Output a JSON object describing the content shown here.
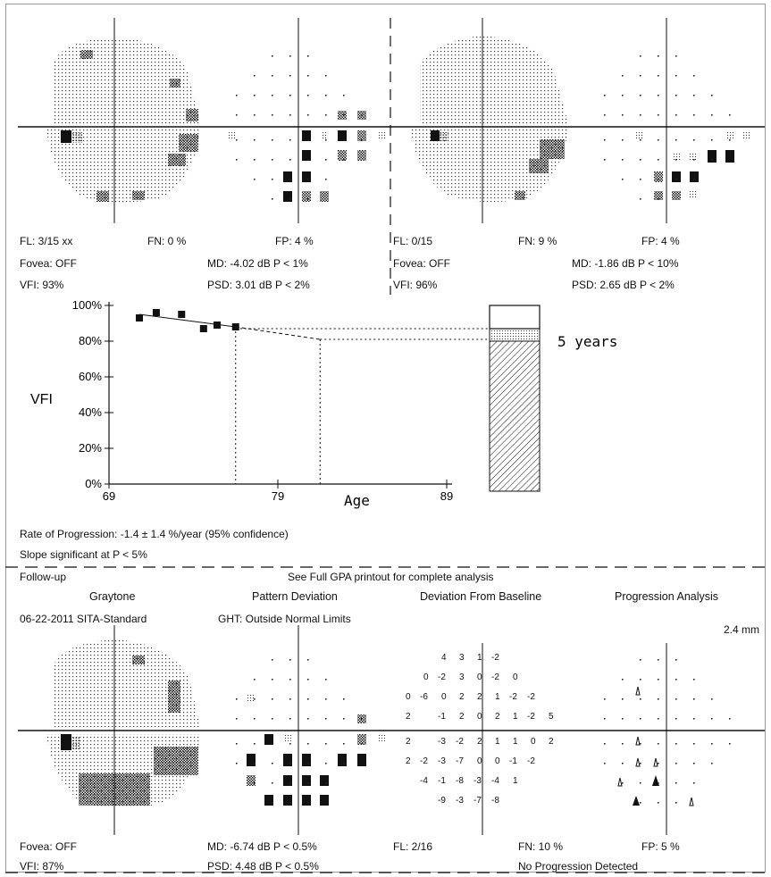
{
  "top_left": {
    "fl": "FL: 3/15 xx",
    "fn": "FN:  0 %",
    "fp": "FP:  4 %",
    "fovea": "Fovea: OFF",
    "md": "MD:  -4.02 dB  P < 1%",
    "vfi": "VFI:  93%",
    "psd": "PSD:  3.01 dB  P < 2%"
  },
  "top_right": {
    "fl": "FL: 0/15",
    "fn": "FN:  9 %",
    "fp": "FP:  4 %",
    "fovea": "Fovea: OFF",
    "md": "MD:  -1.86 dB  P < 10%",
    "vfi": "VFI:  96%",
    "psd": "PSD:  2.65 dB  P < 2%"
  },
  "chart_data": {
    "type": "scatter",
    "title": "",
    "xlabel": "Age",
    "ylabel": "VFI",
    "xlim": [
      69,
      89
    ],
    "ylim": [
      0,
      100
    ],
    "x_ticks": [
      "69",
      "79",
      "89"
    ],
    "y_ticks": [
      "0%",
      "20%",
      "40%",
      "60%",
      "80%",
      "100%"
    ],
    "points": [
      {
        "x": 70.8,
        "y": 93
      },
      {
        "x": 71.8,
        "y": 96
      },
      {
        "x": 73.3,
        "y": 95
      },
      {
        "x": 74.6,
        "y": 87
      },
      {
        "x": 75.4,
        "y": 89
      },
      {
        "x": 76.5,
        "y": 88
      }
    ],
    "trend_line": [
      {
        "x": 70.8,
        "y": 95
      },
      {
        "x": 76.5,
        "y": 88
      }
    ],
    "projection_line": [
      {
        "x": 76.5,
        "y": 88
      },
      {
        "x": 81.5,
        "y": 81
      }
    ],
    "vertical_markers": [
      76.5,
      81.5
    ],
    "bar": {
      "top": 100,
      "dotted_top": 87,
      "hatched_top": 80
    },
    "projection_label": "5 years"
  },
  "rate": "Rate of Progression: -1.4 ± 1.4 %/year (95% confidence)",
  "slope": "Slope significant at P < 5%",
  "followup": {
    "label": "Follow-up",
    "note": "See Full GPA printout for complete analysis",
    "graytone": "Graytone",
    "pattern_deviation": "Pattern Deviation",
    "deviation_from_baseline": "Deviation From Baseline",
    "progression_analysis": "Progression Analysis",
    "date_strategy": "06-22-2011  SITA-Standard",
    "ght": "GHT: Outside Normal Limits",
    "scale": "2.4 mm",
    "fovea": "Fovea: OFF",
    "md": "MD:  -6.74 dB  P < 0.5%",
    "fl": "FL: 2/16",
    "fn": "FN:  10 %",
    "fp": "FP:  5 %",
    "vfi": "VFI:  87%",
    "psd": "PSD:  4.48 dB  P < 0.5%",
    "progression_result": "No Progression Detected"
  },
  "baseline_rows": [
    [
      "4",
      "3",
      "1",
      "-2"
    ],
    [
      "0",
      "-2",
      "3",
      "0",
      "-2",
      "0"
    ],
    [
      "0",
      "-6",
      "0",
      "2",
      "2",
      "1",
      "-2",
      "-2"
    ],
    [
      "2",
      "",
      "-1",
      "2",
      "0",
      "2",
      "1",
      "-2",
      "5"
    ],
    [
      "2",
      "",
      "-3",
      "-2",
      "2",
      "1",
      "1",
      "0",
      "2"
    ],
    [
      "2",
      "-2",
      "-3",
      "-7",
      "0",
      "0",
      "-1",
      "-2"
    ],
    [
      "-4",
      "-1",
      "-8",
      "-3",
      "-4",
      "1"
    ],
    [
      "-9",
      "-3",
      "-7",
      "-8"
    ]
  ]
}
